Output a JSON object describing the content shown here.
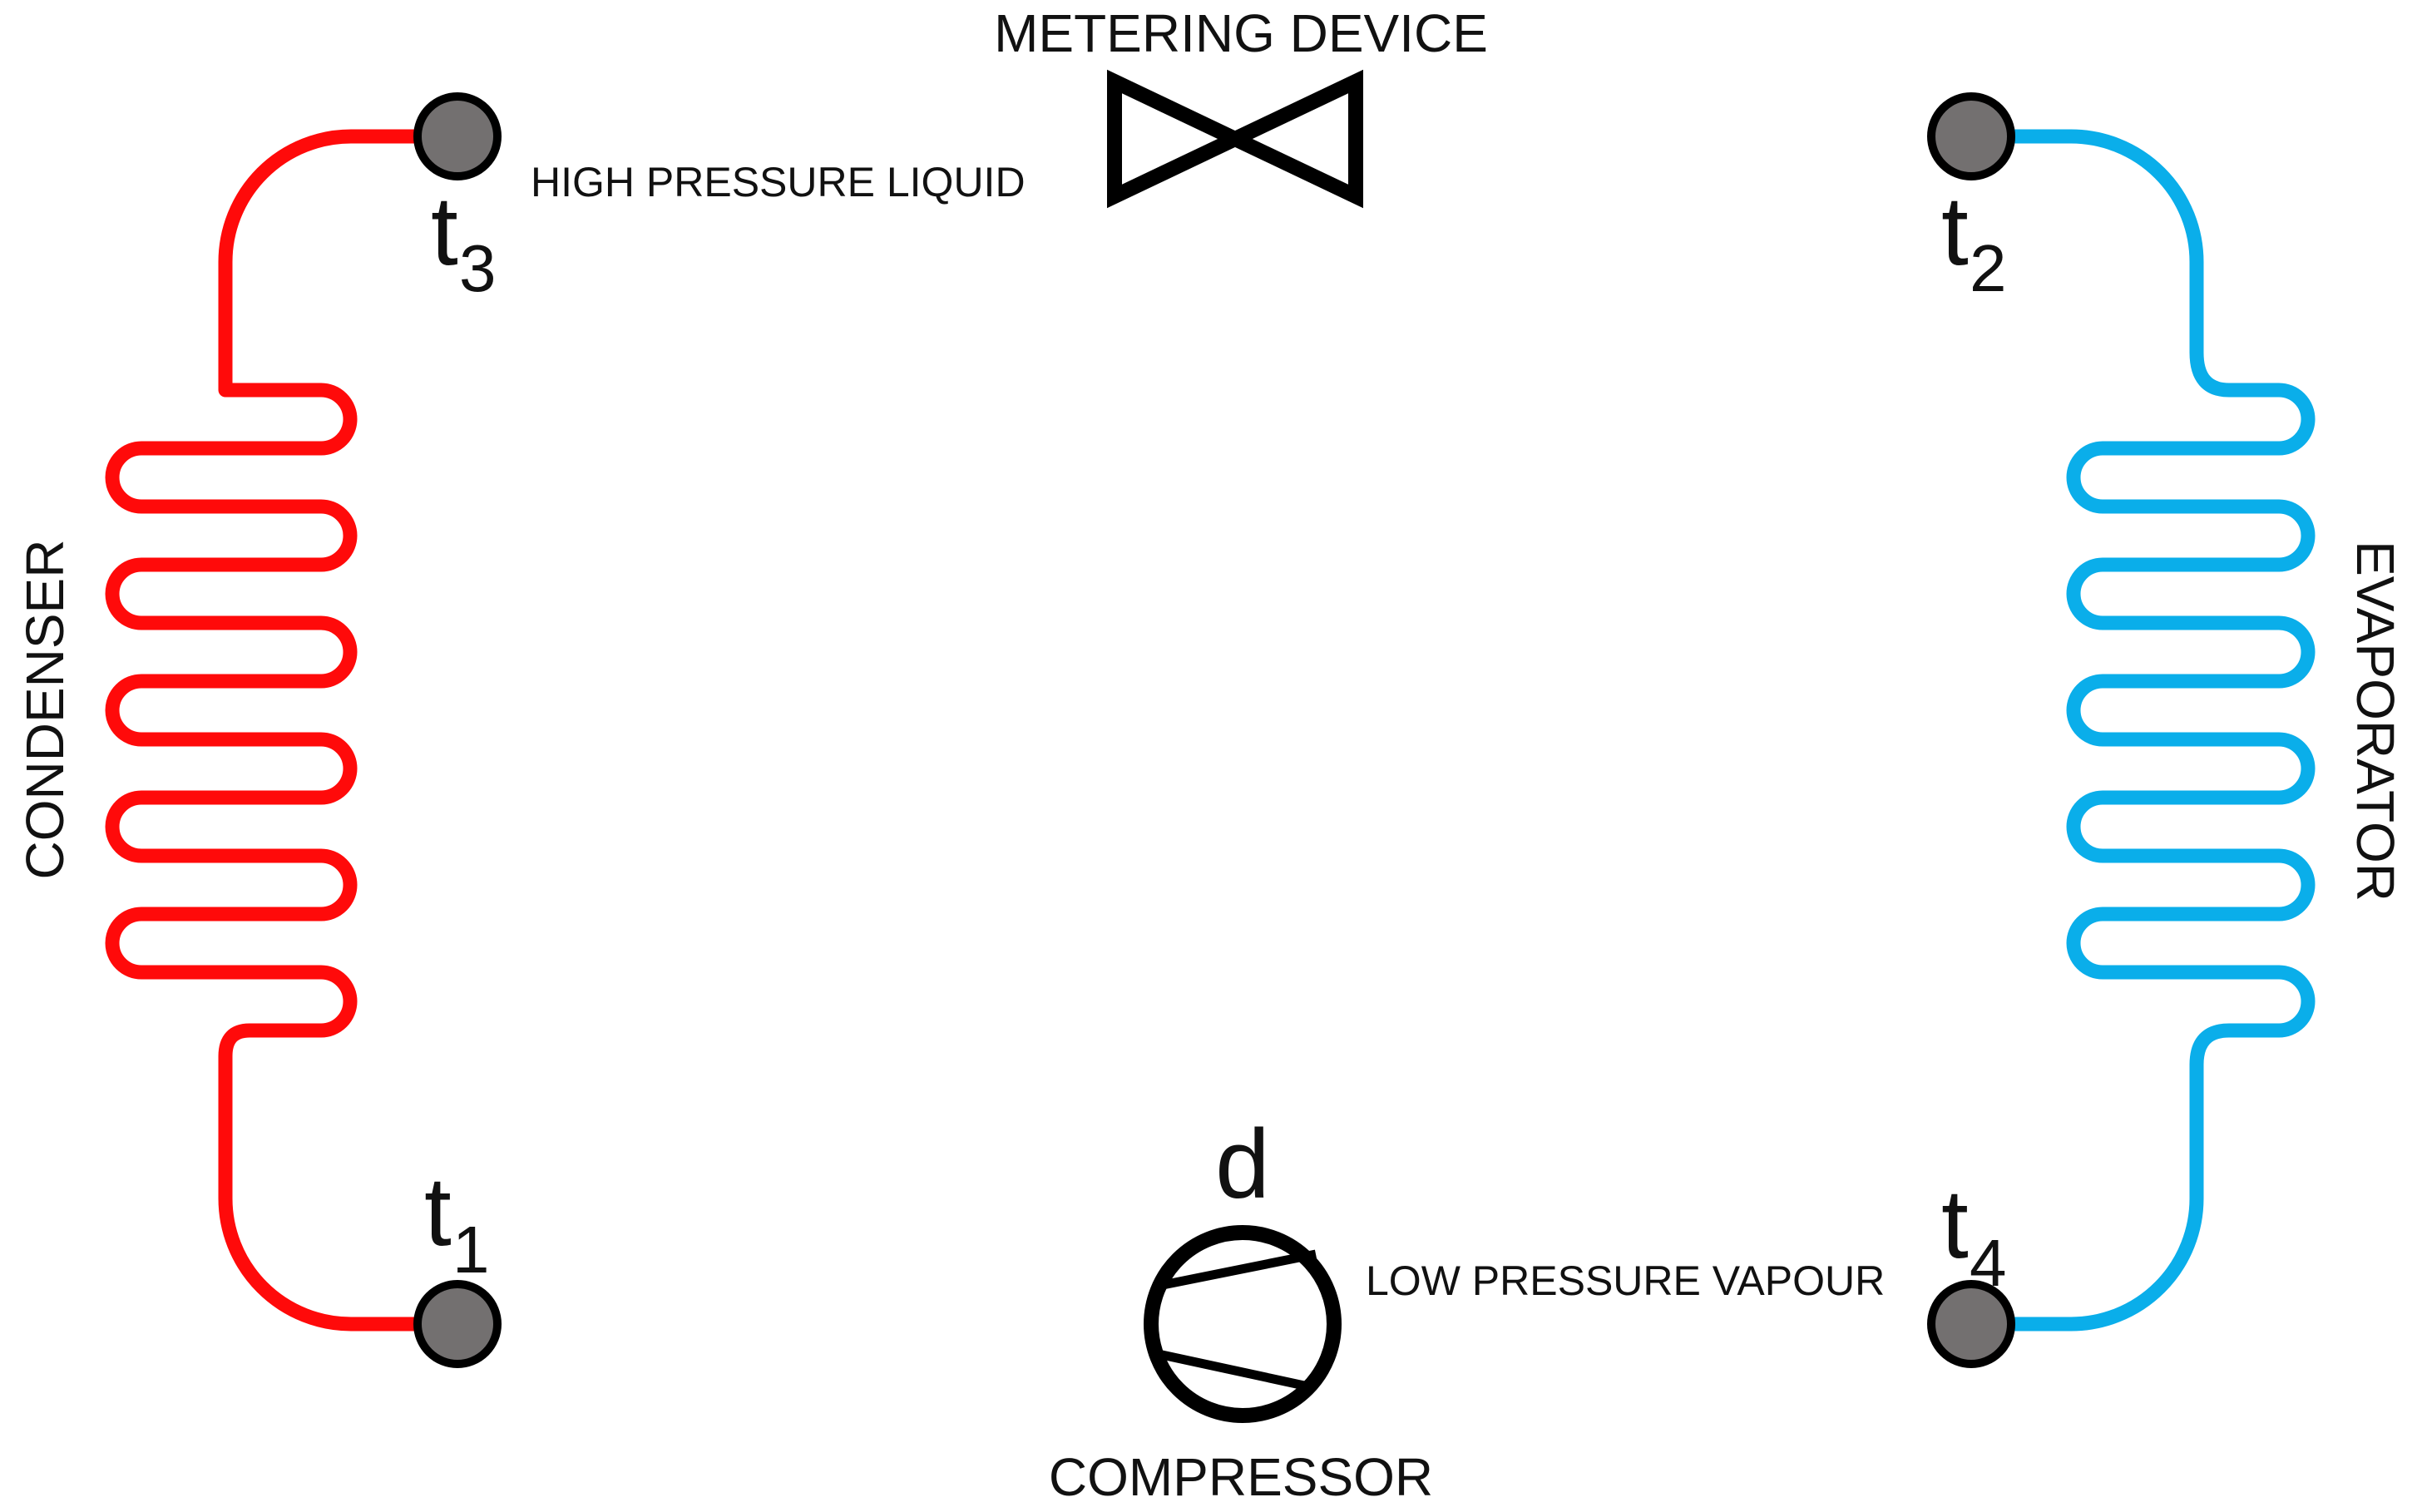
{
  "labels": {
    "metering_device": "METERING DEVICE",
    "compressor": "COMPRESSOR",
    "condenser": "CONDENSER",
    "evaporator": "EVAPORATOR",
    "high_pressure_liquid": "HIGH PRESSURE LIQUID",
    "low_pressure_vapour": "LOW PRESSURE VAPOUR",
    "d": "d"
  },
  "points": {
    "t1": {
      "main": "t",
      "sub": "1"
    },
    "t2": {
      "main": "t",
      "sub": "2"
    },
    "t3": {
      "main": "t",
      "sub": "3"
    },
    "t4": {
      "main": "t",
      "sub": "4"
    }
  },
  "colors": {
    "hot_line": "#ff0a0a",
    "cold_line": "#0aaeea",
    "dark_red": "#5a0000",
    "dark_blue": "#0a2030",
    "sensor_fill": "#737070",
    "outline": "#000000"
  }
}
